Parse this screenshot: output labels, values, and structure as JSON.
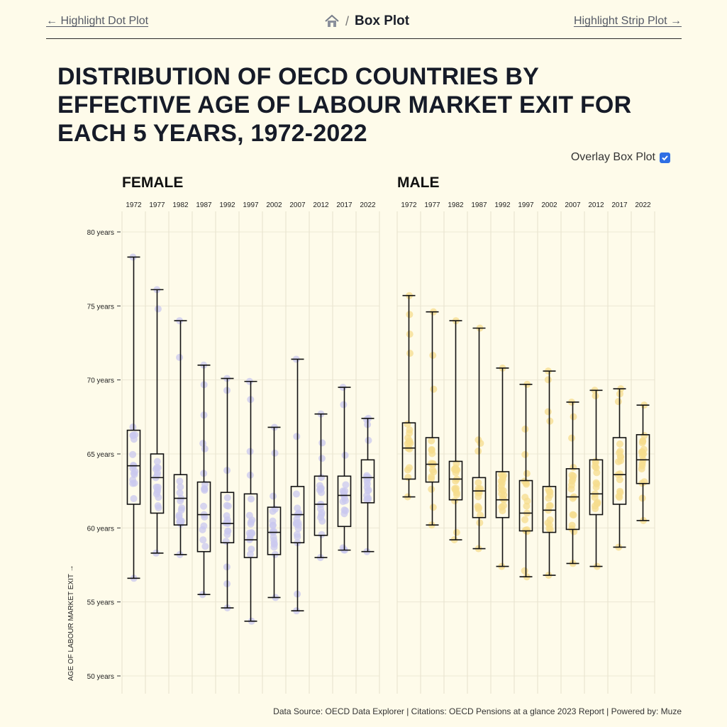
{
  "nav": {
    "prev_label": "← Highlight Dot Plot",
    "next_label": "Highlight Strip Plot →",
    "separator": "/",
    "current": "Box Plot"
  },
  "title": "DISTRIBUTION OF OECD COUNTRIES BY EFFECTIVE AGE OF LABOUR MARKET EXIT FOR EACH 5 YEARS, 1972-2022",
  "overlay_toggle": {
    "label": "Overlay Box Plot",
    "checked": true
  },
  "footer": "Data Source: OECD Data Explorer | Citations: OECD Pensions at a glance 2023 Report | Powered by: Muze",
  "colors": {
    "female_dots": "#c9c8ef",
    "male_dots": "#f5dc8c",
    "box_stroke": "#111111",
    "background": "#fefbea"
  },
  "chart_data": {
    "type": "box",
    "ylabel": "AGE OF LABOUR MARKET EXIT →",
    "yticks": [
      "80 years",
      "75 years",
      "70 years",
      "65 years",
      "60 years",
      "55 years",
      "50 years"
    ],
    "ytick_values": [
      80,
      75,
      70,
      65,
      60,
      55,
      50
    ],
    "ylim": [
      50,
      80
    ],
    "years": [
      "1972",
      "1977",
      "1982",
      "1987",
      "1992",
      "1997",
      "2002",
      "2007",
      "2012",
      "2017",
      "2022"
    ],
    "panels": [
      {
        "name": "FEMALE",
        "boxes": [
          {
            "min": 56.6,
            "q1": 61.6,
            "median": 64.2,
            "q3": 66.6,
            "max": 78.3
          },
          {
            "min": 58.3,
            "q1": 61.0,
            "median": 63.4,
            "q3": 65.0,
            "max": 76.1
          },
          {
            "min": 58.2,
            "q1": 60.2,
            "median": 62.0,
            "q3": 63.6,
            "max": 74.0
          },
          {
            "min": 55.5,
            "q1": 58.4,
            "median": 60.9,
            "q3": 63.1,
            "max": 71.0
          },
          {
            "min": 54.6,
            "q1": 59.0,
            "median": 60.3,
            "q3": 62.4,
            "max": 70.1
          },
          {
            "min": 53.7,
            "q1": 58.0,
            "median": 59.2,
            "q3": 62.3,
            "max": 69.9
          },
          {
            "min": 55.3,
            "q1": 58.2,
            "median": 59.7,
            "q3": 61.4,
            "max": 66.8
          },
          {
            "min": 54.4,
            "q1": 59.0,
            "median": 60.9,
            "q3": 62.8,
            "max": 71.4
          },
          {
            "min": 58.0,
            "q1": 59.5,
            "median": 61.6,
            "q3": 63.5,
            "max": 67.7
          },
          {
            "min": 58.5,
            "q1": 60.1,
            "median": 62.2,
            "q3": 63.5,
            "max": 69.5
          },
          {
            "min": 58.4,
            "q1": 61.7,
            "median": 63.4,
            "q3": 64.6,
            "max": 67.4
          }
        ]
      },
      {
        "name": "MALE",
        "boxes": [
          {
            "min": 62.1,
            "q1": 63.3,
            "median": 65.4,
            "q3": 67.1,
            "max": 75.7
          },
          {
            "min": 60.2,
            "q1": 63.1,
            "median": 64.3,
            "q3": 66.1,
            "max": 74.6
          },
          {
            "min": 59.2,
            "q1": 61.9,
            "median": 63.3,
            "q3": 64.5,
            "max": 74.0
          },
          {
            "min": 58.6,
            "q1": 60.7,
            "median": 62.5,
            "q3": 63.4,
            "max": 73.5
          },
          {
            "min": 57.4,
            "q1": 60.7,
            "median": 61.9,
            "q3": 63.8,
            "max": 70.8
          },
          {
            "min": 56.7,
            "q1": 59.8,
            "median": 61.0,
            "q3": 63.2,
            "max": 69.7
          },
          {
            "min": 56.8,
            "q1": 59.7,
            "median": 61.2,
            "q3": 62.8,
            "max": 70.6
          },
          {
            "min": 57.6,
            "q1": 59.9,
            "median": 62.1,
            "q3": 64.0,
            "max": 68.5
          },
          {
            "min": 57.4,
            "q1": 60.9,
            "median": 62.3,
            "q3": 64.6,
            "max": 69.3
          },
          {
            "min": 58.7,
            "q1": 61.6,
            "median": 63.6,
            "q3": 66.1,
            "max": 69.4
          },
          {
            "min": 60.5,
            "q1": 63.0,
            "median": 64.6,
            "q3": 66.3,
            "max": 68.3
          }
        ]
      }
    ],
    "grid": true
  }
}
